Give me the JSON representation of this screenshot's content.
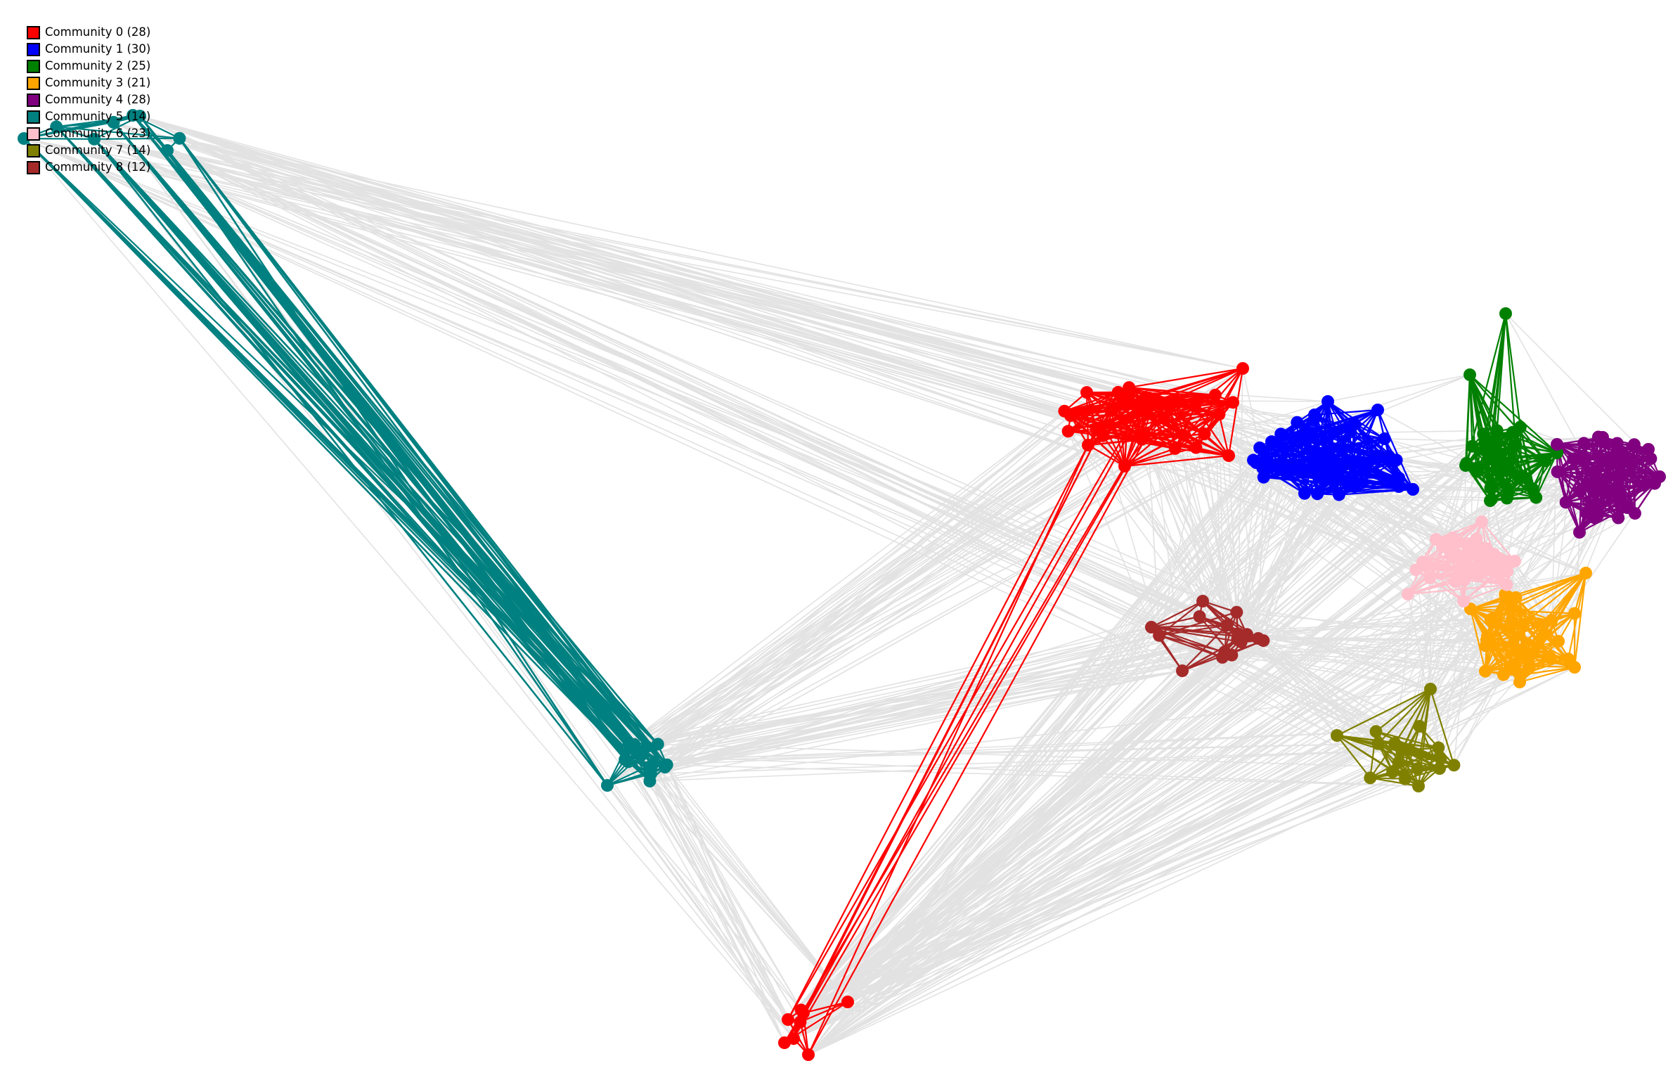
{
  "diagram": {
    "type": "community-network",
    "background": "#ffffff",
    "inter_edge_color": "#e2e2e2",
    "legend_placement": "top-left"
  },
  "legend": {
    "items": [
      {
        "id": 0,
        "label": "Community 0 (28)",
        "color": "#ff0000"
      },
      {
        "id": 1,
        "label": "Community 1 (30)",
        "color": "#0000ff"
      },
      {
        "id": 2,
        "label": "Community 2 (25)",
        "color": "#008000"
      },
      {
        "id": 3,
        "label": "Community 3 (21)",
        "color": "#ffa500"
      },
      {
        "id": 4,
        "label": "Community 4 (28)",
        "color": "#800080"
      },
      {
        "id": 5,
        "label": "Community 5 (14)",
        "color": "#008080"
      },
      {
        "id": 6,
        "label": "Community 6 (23)",
        "color": "#ffc0cb"
      },
      {
        "id": 7,
        "label": "Community 7 (14)",
        "color": "#808000"
      },
      {
        "id": 8,
        "label": "Community 8 (12)",
        "color": "#a52a2a"
      }
    ]
  },
  "communities": [
    {
      "id": 0,
      "name": "community-0",
      "color": "#ff0000",
      "size": 28
    },
    {
      "id": 1,
      "name": "community-1",
      "color": "#0000ff",
      "size": 30
    },
    {
      "id": 2,
      "name": "community-2",
      "color": "#008000",
      "size": 25
    },
    {
      "id": 3,
      "name": "community-3",
      "color": "#ffa500",
      "size": 21
    },
    {
      "id": 4,
      "name": "community-4",
      "color": "#800080",
      "size": 28
    },
    {
      "id": 5,
      "name": "community-5",
      "color": "#008080",
      "size": 14
    },
    {
      "id": 6,
      "name": "community-6",
      "color": "#ffc0cb",
      "size": 23
    },
    {
      "id": 7,
      "name": "community-7",
      "color": "#808000",
      "size": 14
    },
    {
      "id": 8,
      "name": "community-8",
      "color": "#a52a2a",
      "size": 12
    }
  ]
}
